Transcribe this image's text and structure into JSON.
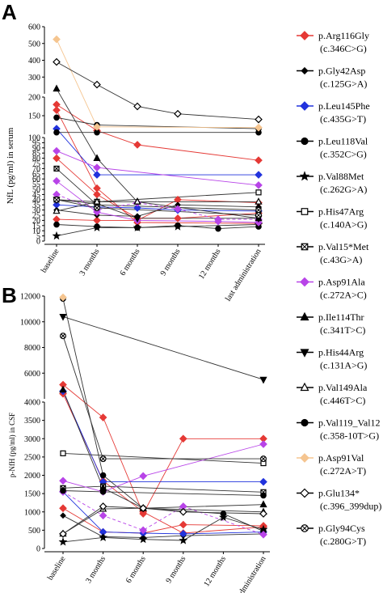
{
  "panels": [
    {
      "letter": "A",
      "ylabel": "NfL (pg/ml) in serum"
    },
    {
      "letter": "B",
      "ylabel": "p-NfH (pg/ml) in CSF"
    }
  ],
  "legend": [
    {
      "name": "p.Arg116Gly",
      "sub": "(c.346C>G)",
      "color": "#e53935",
      "marker": "diamond",
      "filled": true
    },
    {
      "name": "p.Gly42Asp",
      "sub": "(c.125G>A)",
      "color": "#000000",
      "marker": "smalldiamond",
      "filled": true
    },
    {
      "name": "p.Leu145Phe",
      "sub": "(c.435G>T)",
      "color": "#2233dd",
      "marker": "diamond",
      "filled": true
    },
    {
      "name": "p.Leu118Val",
      "sub": "(c.352C>G)",
      "color": "#000000",
      "marker": "circle",
      "filled": true
    },
    {
      "name": "p.Val88Met",
      "sub": "(c.262G>A)",
      "color": "#000000",
      "marker": "star",
      "filled": true
    },
    {
      "name": "p.His47Arg",
      "sub": "(c.140A>G)",
      "color": "#000000",
      "marker": "square",
      "filled": false
    },
    {
      "name": "p.Val15*Met",
      "sub": "(c.43G>A)",
      "color": "#000000",
      "marker": "squarex",
      "filled": false
    },
    {
      "name": "p.Asp91Ala",
      "sub": "(c.272A>C)",
      "color": "#b844e8",
      "marker": "diamond",
      "filled": true
    },
    {
      "name": "p.Ile114Thr",
      "sub": "(c.341T>C)",
      "color": "#000000",
      "marker": "triangle",
      "filled": true
    },
    {
      "name": "p.His44Arg",
      "sub": "(c.131A>G)",
      "color": "#000000",
      "marker": "triangledown",
      "filled": true
    },
    {
      "name": "p.Val149Ala",
      "sub": "(c.446T>C)",
      "color": "#000000",
      "marker": "triangle",
      "filled": false
    },
    {
      "name": "p.Val119_Val12",
      "sub": "(c.358-10T>G)",
      "color": "#000000",
      "marker": "circle",
      "filled": true
    },
    {
      "name": "p.Asp91Val",
      "sub": "(c.272A>T)",
      "color": "#f5c590",
      "marker": "diamond",
      "filled": true
    },
    {
      "name": "p.Glu134*",
      "sub": "(c.396_399dup)",
      "color": "#000000",
      "marker": "diamond",
      "filled": false
    },
    {
      "name": "p.Gly94Cys",
      "sub": "(c.280G>T)",
      "color": "#000000",
      "marker": "circlex",
      "filled": false
    }
  ],
  "chart_data": [
    {
      "type": "line",
      "panel": "A",
      "ylabel": "NfL (pg/ml) in serum",
      "categories": [
        "baseline",
        "3 months",
        "6 months",
        "9 months",
        "12 months",
        "last administration"
      ],
      "y_axis_segments": [
        {
          "range": [
            0,
            100
          ],
          "ticks": [
            0,
            5,
            10,
            15,
            20,
            25,
            30,
            35,
            40,
            45,
            50,
            55,
            60,
            65,
            70,
            75,
            80,
            85,
            90,
            95,
            100
          ]
        },
        {
          "range": [
            100,
            200
          ],
          "ticks": [
            100,
            150,
            200
          ]
        },
        {
          "range": [
            200,
            600
          ],
          "ticks": [
            200,
            300,
            400,
            500,
            600
          ]
        }
      ],
      "series": [
        {
          "name": "p.Arg116Gly",
          "color": "#e53935",
          "marker": "diamond",
          "filled": true,
          "dashed": false,
          "values": [
            180,
            110,
            93,
            null,
            null,
            78
          ]
        },
        {
          "name": "p.Arg116Gly",
          "color": "#e53935",
          "marker": "diamond",
          "filled": true,
          "dashed": false,
          "values": [
            80,
            45,
            22,
            22,
            null,
            27
          ]
        },
        {
          "name": "p.Arg116Gly",
          "color": "#e53935",
          "marker": "diamond",
          "filled": true,
          "dashed": false,
          "values": [
            21,
            20,
            20,
            40,
            null,
            37
          ]
        },
        {
          "name": "p.Arg116Gly",
          "color": "#e53935",
          "marker": "diamond",
          "filled": true,
          "dashed": false,
          "values": [
            165,
            51,
            18,
            null,
            null,
            17
          ]
        },
        {
          "name": "p.Gly42Asp",
          "color": "#000000",
          "marker": "smalldiamond",
          "filled": true,
          "dashed": false,
          "values": [
            30,
            25,
            24,
            35,
            null,
            33
          ]
        },
        {
          "name": "p.Leu145Phe",
          "color": "#2233dd",
          "marker": "diamond",
          "filled": true,
          "dashed": false,
          "values": [
            115,
            64,
            null,
            null,
            null,
            64
          ]
        },
        {
          "name": "p.Leu145Phe",
          "color": "#2233dd",
          "marker": "diamond",
          "filled": true,
          "dashed": false,
          "values": [
            35,
            33,
            32,
            30,
            null,
            29
          ]
        },
        {
          "name": "p.Leu118Val",
          "color": "#000000",
          "marker": "circle",
          "filled": true,
          "dashed": false,
          "values": [
            145,
            125,
            null,
            null,
            null,
            115
          ]
        },
        {
          "name": "p.Leu118Val",
          "color": "#000000",
          "marker": "circle",
          "filled": true,
          "dashed": false,
          "values": [
            16,
            14,
            13,
            15,
            12,
            14
          ]
        },
        {
          "name": "p.Val88Met",
          "color": "#000000",
          "marker": "star",
          "filled": true,
          "dashed": false,
          "values": [
            5,
            13,
            13,
            14,
            null,
            16
          ]
        },
        {
          "name": "p.His47Arg",
          "color": "#000000",
          "marker": "square",
          "filled": false,
          "dashed": false,
          "values": [
            40,
            38,
            null,
            null,
            null,
            47
          ]
        },
        {
          "name": "p.Val15*Met",
          "color": "#000000",
          "marker": "squarex",
          "filled": false,
          "dashed": false,
          "values": [
            70,
            35,
            null,
            null,
            null,
            30
          ]
        },
        {
          "name": "p.Asp91Ala",
          "color": "#b844e8",
          "marker": "diamond",
          "filled": true,
          "dashed": false,
          "values": [
            87,
            71,
            null,
            null,
            null,
            54
          ]
        },
        {
          "name": "p.Asp91Ala",
          "color": "#b844e8",
          "marker": "diamond",
          "filled": true,
          "dashed": false,
          "values": [
            58,
            28,
            20,
            null,
            19,
            18
          ]
        },
        {
          "name": "p.Asp91Ala",
          "color": "#b844e8",
          "marker": "diamond",
          "filled": true,
          "dashed": true,
          "values": [
            45,
            30,
            37,
            31,
            21,
            21
          ]
        },
        {
          "name": "p.Ile114Thr",
          "color": "#000000",
          "marker": "triangle",
          "filled": true,
          "dashed": false,
          "values": [
            230,
            80,
            38,
            null,
            null,
            22
          ]
        },
        {
          "name": "p.His44Arg",
          "color": "#000000",
          "marker": "triangledown",
          "filled": true,
          "dashed": false,
          "values": [
            40,
            36,
            22,
            null,
            null,
            22
          ]
        },
        {
          "name": "p.Val149Ala",
          "color": "#000000",
          "marker": "triangle",
          "filled": false,
          "dashed": false,
          "values": [
            29,
            38,
            38,
            null,
            null,
            38
          ]
        },
        {
          "name": "p.Val119_Val12",
          "color": "#000000",
          "marker": "circle",
          "filled": true,
          "dashed": false,
          "values": [
            105,
            105,
            null,
            null,
            null,
            105
          ]
        },
        {
          "name": "p.Asp91Val",
          "color": "#f5c590",
          "marker": "diamond",
          "filled": true,
          "dashed": false,
          "values": [
            525,
            120,
            null,
            null,
            null,
            118
          ]
        },
        {
          "name": "p.Glu134*",
          "color": "#000000",
          "marker": "diamond",
          "filled": false,
          "dashed": false,
          "values": [
            390,
            255,
            175,
            155,
            null,
            140
          ]
        },
        {
          "name": "p.Gly94Cys",
          "color": "#000000",
          "marker": "circlex",
          "filled": false,
          "dashed": false,
          "values": [
            40,
            32,
            null,
            null,
            null,
            25
          ]
        }
      ]
    },
    {
      "type": "line",
      "panel": "B",
      "ylabel": "p-NfH (pg/ml) in CSF",
      "categories": [
        "baseline",
        "3 months",
        "6 months",
        "9 months",
        "12 months",
        "last administration"
      ],
      "y_axis_segments": [
        {
          "range": [
            0,
            4000
          ],
          "ticks": [
            0,
            500,
            1000,
            1500,
            2000,
            2500,
            3000,
            3500,
            4000
          ]
        },
        {
          "range": [
            4000,
            12000
          ],
          "ticks": [
            4000,
            6000,
            8000,
            10000,
            12000
          ]
        }
      ],
      "series": [
        {
          "name": "p.Arg116Gly",
          "color": "#e53935",
          "marker": "diamond",
          "filled": true,
          "dashed": false,
          "values": [
            5100,
            3580,
            950,
            3000,
            null,
            3000
          ]
        },
        {
          "name": "p.Arg116Gly",
          "color": "#e53935",
          "marker": "diamond",
          "filled": true,
          "dashed": false,
          "values": [
            1100,
            450,
            420,
            650,
            null,
            620
          ]
        },
        {
          "name": "p.Arg116Gly",
          "color": "#e53935",
          "marker": "diamond",
          "filled": true,
          "dashed": false,
          "values": [
            4400,
            1850,
            1000,
            420,
            null,
            590
          ]
        },
        {
          "name": "p.Gly42Asp",
          "color": "#000000",
          "marker": "smalldiamond",
          "filled": true,
          "dashed": false,
          "values": [
            900,
            320,
            300,
            350,
            null,
            400
          ]
        },
        {
          "name": "p.Leu145Phe",
          "color": "#2233dd",
          "marker": "diamond",
          "filled": true,
          "dashed": false,
          "values": [
            4600,
            1820,
            null,
            null,
            null,
            1820
          ]
        },
        {
          "name": "p.Leu145Phe",
          "color": "#2233dd",
          "marker": "diamond",
          "filled": true,
          "dashed": false,
          "values": [
            1550,
            450,
            420,
            400,
            null,
            450
          ]
        },
        {
          "name": "p.Leu118Val",
          "color": "#000000",
          "marker": "circle",
          "filled": true,
          "dashed": false,
          "values": [
            11800,
            2000,
            1100,
            null,
            950,
            470
          ]
        },
        {
          "name": "p.Val88Met",
          "color": "#000000",
          "marker": "star",
          "filled": true,
          "dashed": false,
          "values": [
            180,
            300,
            250,
            220,
            850,
            520
          ]
        },
        {
          "name": "p.His47Arg",
          "color": "#000000",
          "marker": "square",
          "filled": false,
          "dashed": false,
          "values": [
            2600,
            null,
            null,
            null,
            null,
            2330
          ]
        },
        {
          "name": "p.Val15*Met",
          "color": "#000000",
          "marker": "squarex",
          "filled": false,
          "dashed": false,
          "values": [
            1650,
            1700,
            null,
            null,
            null,
            1540
          ]
        },
        {
          "name": "p.Asp91Ala",
          "color": "#b844e8",
          "marker": "diamond",
          "filled": true,
          "dashed": false,
          "values": [
            1850,
            1550,
            1980,
            null,
            null,
            2850
          ]
        },
        {
          "name": "p.Asp91Ala",
          "color": "#b844e8",
          "marker": "diamond",
          "filled": true,
          "dashed": true,
          "values": [
            1550,
            900,
            500,
            1150,
            null,
            380
          ]
        },
        {
          "name": "p.Ile114Thr",
          "color": "#000000",
          "marker": "triangle",
          "filled": true,
          "dashed": false,
          "values": [
            4700,
            1650,
            1100,
            null,
            null,
            1200
          ]
        },
        {
          "name": "p.His44Arg",
          "color": "#000000",
          "marker": "triangledown",
          "filled": true,
          "dashed": false,
          "values": [
            10400,
            null,
            null,
            null,
            null,
            5500
          ]
        },
        {
          "name": "p.Val149Ala",
          "color": "#000000",
          "marker": "triangle",
          "filled": false,
          "dashed": false,
          "values": [
            400,
            1080,
            1100,
            null,
            null,
            1000
          ]
        },
        {
          "name": "p.Val119_Val12",
          "color": "#000000",
          "marker": "circle",
          "filled": true,
          "dashed": false,
          "values": [
            1580,
            1550,
            null,
            null,
            null,
            1450
          ]
        },
        {
          "name": "p.Asp91Val",
          "color": "#f5c590",
          "marker": "diamond",
          "filled": true,
          "dashed": false,
          "values": [
            11900,
            null,
            null,
            null,
            null,
            null
          ]
        },
        {
          "name": "p.Glu134*",
          "color": "#000000",
          "marker": "diamond",
          "filled": false,
          "dashed": false,
          "values": [
            400,
            1150,
            1100,
            1000,
            null,
            950
          ]
        },
        {
          "name": "p.Gly94Cys",
          "color": "#000000",
          "marker": "circlex",
          "filled": false,
          "dashed": false,
          "values": [
            8900,
            2450,
            null,
            null,
            null,
            2450
          ]
        }
      ]
    }
  ]
}
